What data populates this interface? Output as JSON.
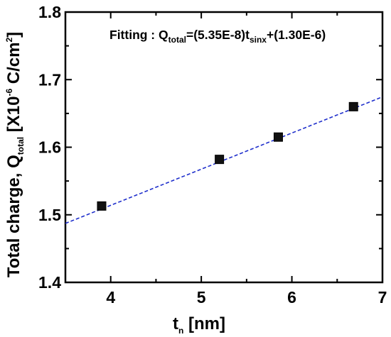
{
  "chart_data": {
    "type": "scatter",
    "xlabel_main": "t",
    "xlabel_sub": "n",
    "xlabel_unit": " [nm]",
    "ylabel_pre": "Total charge, Q",
    "ylabel_sub": "total",
    "ylabel_unit_a": " [X10",
    "ylabel_exp": "-6",
    "ylabel_unit_b": " C/cm",
    "ylabel_exp2": "2",
    "ylabel_close": "]",
    "xlim": [
      3.5,
      7
    ],
    "ylim": [
      1.4,
      1.8
    ],
    "x_ticks": [
      4,
      5,
      6,
      7
    ],
    "x_tick_labels": [
      "4",
      "5",
      "6",
      "7"
    ],
    "y_ticks": [
      1.4,
      1.5,
      1.6,
      1.7,
      1.8
    ],
    "y_tick_labels": [
      "1.4",
      "1.5",
      "1.6",
      "1.7",
      "1.8"
    ],
    "points": [
      {
        "x": 3.9,
        "y": 1.513
      },
      {
        "x": 5.2,
        "y": 1.582
      },
      {
        "x": 5.85,
        "y": 1.615
      },
      {
        "x": 6.68,
        "y": 1.66
      }
    ],
    "fit": {
      "slope": 0.0535,
      "intercept": 1.3
    },
    "fit_label": {
      "a": "Fitting : Q",
      "sub1": "total",
      "b": "=(5.35E-8)t",
      "sub2": "sinx",
      "c": "+(1.30E-6)"
    },
    "grid": false,
    "colors": {
      "fit_line": "#1f2fcc",
      "marker": "#111111",
      "axis": "#000000"
    }
  }
}
